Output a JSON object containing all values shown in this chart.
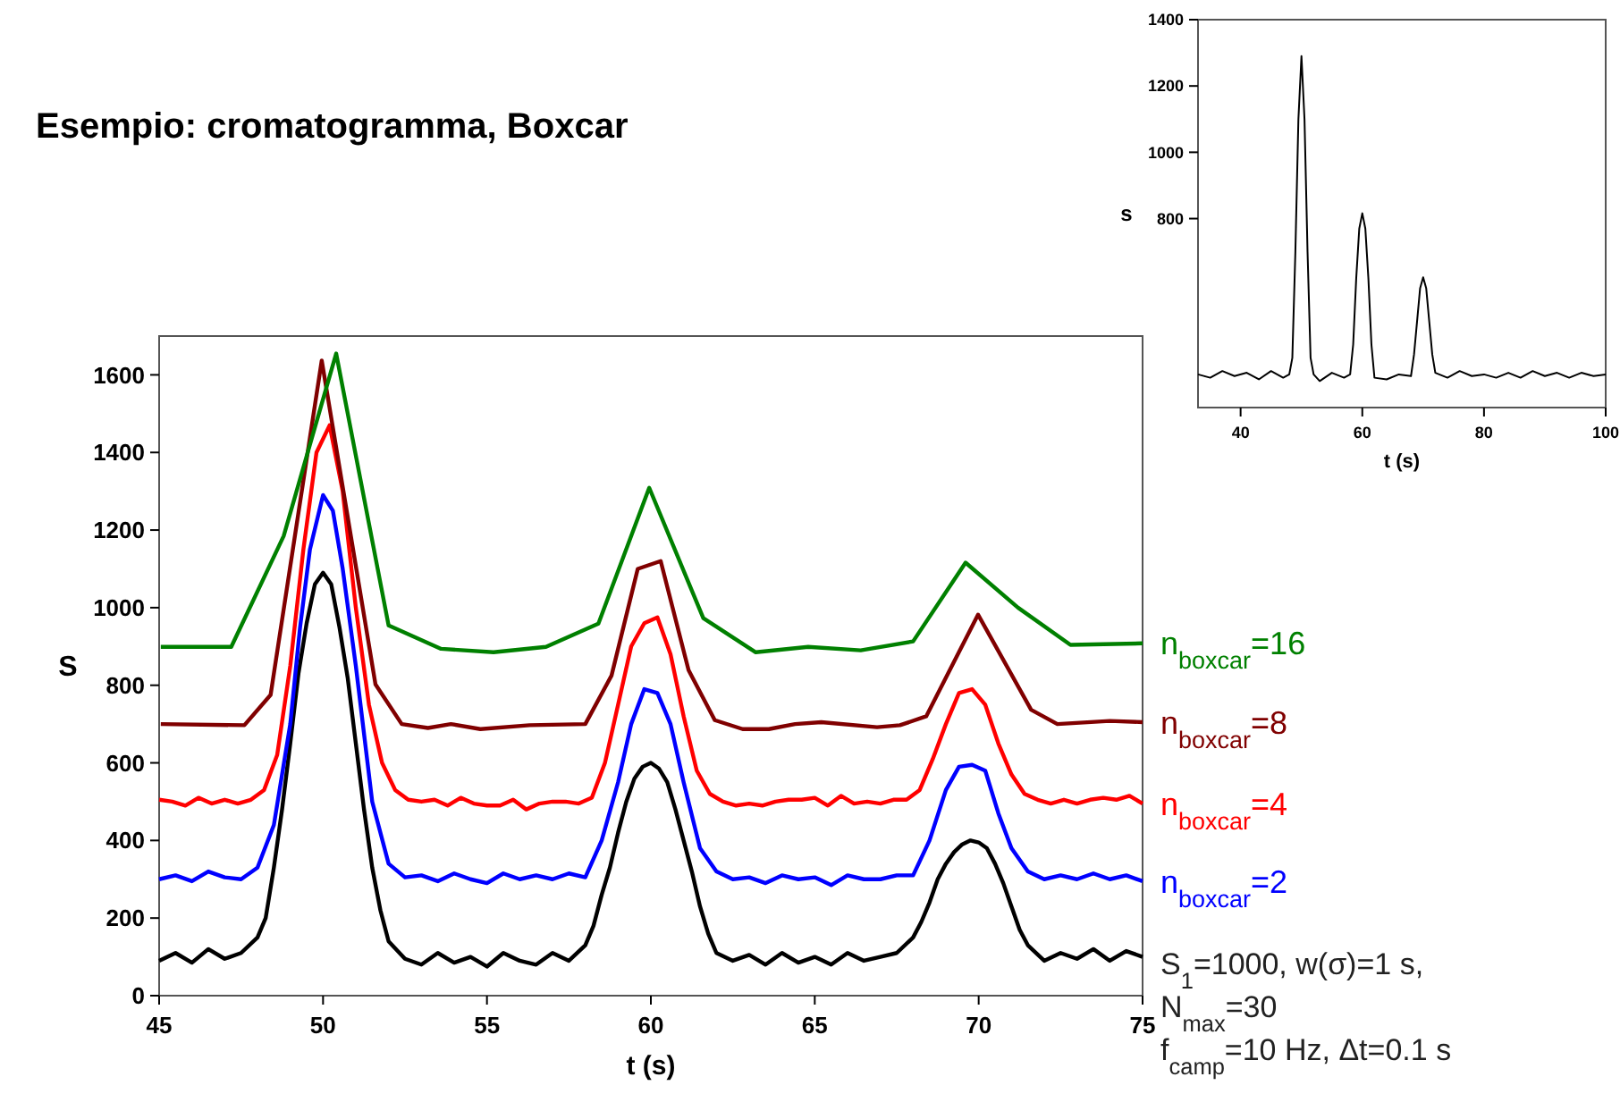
{
  "chart_data": [
    {
      "type": "line",
      "title": "Esempio: cromatogramma, Boxcar",
      "xlabel": "t (s)",
      "ylabel": "S",
      "xlim": [
        45,
        75
      ],
      "ylim": [
        0,
        1700
      ],
      "xticks": [
        45,
        50,
        55,
        60,
        65,
        70,
        75
      ],
      "yticks": [
        0,
        200,
        400,
        600,
        800,
        1000,
        1200,
        1400,
        1600
      ],
      "annotations": [
        "S$_{1}$=1000, w(σ)=1 s,",
        "N$_{max}$=30",
        "f$_{camp}$=10 Hz, Δt=0.1 s"
      ],
      "series": [
        {
          "color": "#000000",
          "x": [
            45,
            45.5,
            46,
            46.5,
            47,
            47.5,
            48,
            48.25,
            48.5,
            48.75,
            49,
            49.25,
            49.5,
            49.75,
            50,
            50.25,
            50.5,
            50.75,
            51,
            51.25,
            51.5,
            51.75,
            52,
            52.5,
            53,
            53.5,
            54,
            54.5,
            55,
            55.5,
            56,
            56.5,
            57,
            57.5,
            58,
            58.25,
            58.5,
            58.75,
            59,
            59.25,
            59.5,
            59.75,
            60,
            60.25,
            60.5,
            60.75,
            61,
            61.25,
            61.5,
            61.75,
            62,
            62.5,
            63,
            63.5,
            64,
            64.5,
            65,
            65.5,
            66,
            66.5,
            67,
            67.5,
            68,
            68.25,
            68.5,
            68.75,
            69,
            69.25,
            69.5,
            69.75,
            70,
            70.25,
            70.5,
            70.75,
            71,
            71.25,
            71.5,
            72,
            72.5,
            73,
            73.5,
            74,
            74.5,
            75
          ],
          "values": [
            90,
            110,
            85,
            120,
            95,
            110,
            150,
            200,
            330,
            480,
            650,
            830,
            960,
            1060,
            1090,
            1060,
            950,
            820,
            650,
            480,
            330,
            220,
            140,
            95,
            80,
            110,
            85,
            100,
            75,
            110,
            90,
            80,
            110,
            90,
            130,
            180,
            260,
            330,
            420,
            500,
            560,
            590,
            600,
            585,
            550,
            480,
            400,
            320,
            230,
            160,
            110,
            90,
            105,
            80,
            110,
            85,
            100,
            80,
            110,
            90,
            100,
            110,
            150,
            190,
            240,
            300,
            340,
            370,
            390,
            400,
            395,
            380,
            340,
            290,
            230,
            170,
            130,
            90,
            110,
            95,
            120,
            90,
            115,
            100
          ]
        },
        {
          "name": "n$_{boxcar}$=2",
          "color": "#0000ff",
          "x": [
            45,
            45.5,
            46,
            46.5,
            47,
            47.5,
            48,
            48.5,
            49,
            49.3,
            49.6,
            50,
            50.3,
            50.6,
            51,
            51.5,
            52,
            52.5,
            53,
            53.5,
            54,
            54.5,
            55,
            55.5,
            56,
            56.5,
            57,
            57.5,
            58,
            58.5,
            59,
            59.4,
            59.8,
            60.2,
            60.6,
            61,
            61.5,
            62,
            62.5,
            63,
            63.5,
            64,
            64.5,
            65,
            65.5,
            66,
            66.5,
            67,
            67.5,
            68,
            68.5,
            69,
            69.4,
            69.8,
            70.2,
            70.6,
            71,
            71.5,
            72,
            72.5,
            73,
            73.5,
            74,
            74.5,
            75
          ],
          "values": [
            300,
            310,
            295,
            320,
            305,
            300,
            330,
            440,
            700,
            950,
            1150,
            1290,
            1250,
            1100,
            850,
            500,
            340,
            305,
            310,
            295,
            315,
            300,
            290,
            315,
            300,
            310,
            300,
            315,
            305,
            400,
            550,
            700,
            790,
            780,
            700,
            550,
            380,
            320,
            300,
            305,
            290,
            310,
            300,
            305,
            285,
            310,
            300,
            300,
            310,
            310,
            400,
            530,
            590,
            595,
            580,
            470,
            380,
            320,
            300,
            310,
            300,
            315,
            300,
            310,
            295
          ]
        },
        {
          "name": "n$_{boxcar}$=4",
          "color": "#ff0000",
          "x": [
            45,
            45.4,
            45.8,
            46.2,
            46.6,
            47,
            47.4,
            47.8,
            48.2,
            48.6,
            49,
            49.4,
            49.8,
            50.2,
            50.6,
            51,
            51.4,
            51.8,
            52.2,
            52.6,
            53,
            53.4,
            53.8,
            54.2,
            54.6,
            55,
            55.4,
            55.8,
            56.2,
            56.6,
            57,
            57.4,
            57.8,
            58.2,
            58.6,
            59,
            59.4,
            59.8,
            60.2,
            60.6,
            61,
            61.4,
            61.8,
            62.2,
            62.6,
            63,
            63.4,
            63.8,
            64.2,
            64.6,
            65,
            65.4,
            65.8,
            66.2,
            66.6,
            67,
            67.4,
            67.8,
            68.2,
            68.6,
            69,
            69.4,
            69.8,
            70.2,
            70.6,
            71,
            71.4,
            71.8,
            72.2,
            72.6,
            73,
            73.4,
            73.8,
            74.2,
            74.6,
            75
          ],
          "values": [
            505,
            500,
            490,
            510,
            495,
            505,
            495,
            505,
            530,
            620,
            850,
            1150,
            1400,
            1470,
            1300,
            1000,
            750,
            600,
            530,
            505,
            500,
            505,
            490,
            510,
            495,
            490,
            490,
            505,
            480,
            495,
            500,
            500,
            495,
            510,
            600,
            750,
            900,
            960,
            975,
            880,
            720,
            580,
            520,
            500,
            490,
            495,
            490,
            500,
            505,
            505,
            510,
            490,
            515,
            495,
            500,
            495,
            505,
            505,
            530,
            610,
            700,
            780,
            790,
            750,
            650,
            570,
            520,
            505,
            495,
            505,
            495,
            505,
            510,
            505,
            515,
            495
          ]
        },
        {
          "name": "n$_{boxcar}$=8",
          "color": "#800000",
          "x": [
            45.05,
            47.6,
            48.4,
            49.96,
            51.6,
            52.4,
            53.2,
            53.9,
            54.8,
            56.3,
            58,
            58.8,
            59.6,
            60.3,
            61.15,
            61.95,
            62.8,
            63.6,
            64.4,
            65.2,
            66.9,
            67.6,
            68.4,
            69.98,
            71.6,
            72.4,
            74,
            75
          ],
          "values": [
            700,
            697,
            775,
            1637,
            802,
            700,
            690,
            700,
            687,
            697,
            700,
            825,
            1100,
            1120,
            839,
            710,
            687,
            687,
            700,
            705,
            692,
            697,
            720,
            982,
            737,
            700,
            708,
            705
          ]
        },
        {
          "name": "n$_{boxcar}$=16",
          "color": "#008000",
          "x": [
            45.05,
            47.2,
            48.8,
            50.4,
            52,
            53.6,
            55.2,
            56.8,
            58.4,
            59.95,
            61.6,
            63.2,
            64.8,
            66.4,
            68,
            69.6,
            71.2,
            72.8,
            75
          ],
          "values": [
            899,
            899,
            1185,
            1655,
            954,
            894,
            885,
            899,
            959,
            1309,
            973,
            885,
            899,
            890,
            913,
            1116,
            1000,
            904,
            908
          ]
        }
      ]
    },
    {
      "type": "line",
      "xlabel": "t (s)",
      "ylabel": "s",
      "xlim": [
        33,
        100
      ],
      "ylim": [
        230,
        1400
      ],
      "xticks": [
        40,
        60,
        80,
        100
      ],
      "yticks": [
        800,
        1000,
        1200,
        1400
      ],
      "series": [
        {
          "color": "#000000",
          "x": [
            33,
            35,
            37,
            39,
            41,
            43,
            45,
            47,
            48,
            48.5,
            49,
            49.5,
            50,
            50.5,
            51,
            51.5,
            52,
            53,
            55,
            57,
            58,
            58.5,
            59,
            59.5,
            60,
            60.5,
            61,
            61.5,
            62,
            64,
            66,
            68,
            68.5,
            69,
            69.5,
            70,
            70.5,
            71,
            71.5,
            72,
            74,
            76,
            78,
            80,
            82,
            84,
            86,
            88,
            90,
            92,
            94,
            96,
            98,
            100
          ],
          "values": [
            330,
            320,
            340,
            325,
            335,
            315,
            340,
            320,
            330,
            380,
            700,
            1100,
            1290,
            1100,
            700,
            380,
            330,
            310,
            335,
            320,
            330,
            420,
            620,
            770,
            816,
            770,
            620,
            420,
            320,
            315,
            330,
            325,
            390,
            490,
            590,
            623,
            590,
            490,
            390,
            335,
            320,
            340,
            325,
            330,
            320,
            335,
            320,
            340,
            325,
            335,
            320,
            335,
            325,
            330
          ]
        }
      ]
    }
  ]
}
